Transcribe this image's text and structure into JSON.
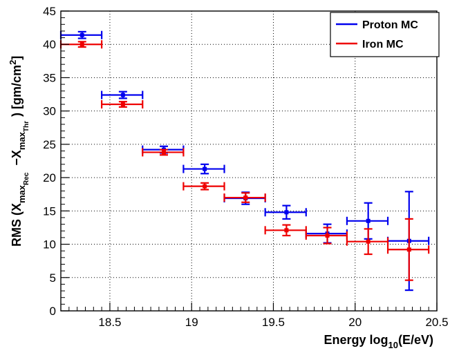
{
  "chart_data": {
    "type": "scatter",
    "title": "",
    "xlabel": "Energy  log10(E/eV)",
    "xlabel_parts": {
      "main": "Energy  log",
      "sub": "10",
      "tail": "(E/eV)"
    },
    "ylabel": "RMS (Xmax_Rec −Xmax_Thr)   [gm/cm2]",
    "ylabel_parts": {
      "p1": "RMS (X",
      "s1": "max",
      "ss1": "Rec",
      "p2": "−X",
      "s2": "max",
      "ss2": "Thr",
      "p3": ")   [gm/cm",
      "sup": "2",
      "p4": "]"
    },
    "xlim": [
      18.2,
      20.5
    ],
    "ylim": [
      0,
      45
    ],
    "grid": true,
    "legend_position": "top-right",
    "xticks": [
      18.5,
      19,
      19.5,
      20,
      20.5
    ],
    "xtick_labels": [
      "18.5",
      "19",
      "19.5",
      "20",
      "20.5"
    ],
    "yticks": [
      0,
      5,
      10,
      15,
      20,
      25,
      30,
      35,
      40,
      45
    ],
    "ytick_labels": [
      "0",
      "5",
      "10",
      "15",
      "20",
      "25",
      "30",
      "35",
      "40",
      "45"
    ],
    "series": [
      {
        "name": "Proton MC",
        "color": "#0000ee",
        "points": [
          {
            "x": 18.33,
            "xlo": 18.2,
            "xhi": 18.45,
            "y": 41.4,
            "ylo": 40.9,
            "yhi": 41.9
          },
          {
            "x": 18.58,
            "xlo": 18.45,
            "xhi": 18.7,
            "y": 32.4,
            "ylo": 31.9,
            "yhi": 32.9
          },
          {
            "x": 18.83,
            "xlo": 18.7,
            "xhi": 18.95,
            "y": 24.2,
            "ylo": 23.7,
            "yhi": 24.7
          },
          {
            "x": 19.08,
            "xlo": 18.95,
            "xhi": 19.2,
            "y": 21.3,
            "ylo": 20.6,
            "yhi": 22.0
          },
          {
            "x": 19.33,
            "xlo": 19.2,
            "xhi": 19.45,
            "y": 16.9,
            "ylo": 16.0,
            "yhi": 17.8
          },
          {
            "x": 19.58,
            "xlo": 19.45,
            "xhi": 19.7,
            "y": 14.8,
            "ylo": 13.8,
            "yhi": 15.8
          },
          {
            "x": 19.83,
            "xlo": 19.7,
            "xhi": 19.95,
            "y": 11.6,
            "ylo": 10.2,
            "yhi": 13.0
          },
          {
            "x": 20.08,
            "xlo": 19.95,
            "xhi": 20.2,
            "y": 13.5,
            "ylo": 10.8,
            "yhi": 16.2
          },
          {
            "x": 20.33,
            "xlo": 20.2,
            "xhi": 20.45,
            "y": 10.5,
            "ylo": 3.1,
            "yhi": 17.9
          }
        ]
      },
      {
        "name": "Iron MC",
        "color": "#ee0000",
        "points": [
          {
            "x": 18.33,
            "xlo": 18.2,
            "xhi": 18.45,
            "y": 40.0,
            "ylo": 39.6,
            "yhi": 40.4
          },
          {
            "x": 18.58,
            "xlo": 18.45,
            "xhi": 18.7,
            "y": 31.0,
            "ylo": 30.6,
            "yhi": 31.4
          },
          {
            "x": 18.83,
            "xlo": 18.7,
            "xhi": 18.95,
            "y": 23.8,
            "ylo": 23.4,
            "yhi": 24.2
          },
          {
            "x": 19.08,
            "xlo": 18.95,
            "xhi": 19.2,
            "y": 18.7,
            "ylo": 18.2,
            "yhi": 19.2
          },
          {
            "x": 19.33,
            "xlo": 19.2,
            "xhi": 19.45,
            "y": 17.0,
            "ylo": 16.3,
            "yhi": 17.7
          },
          {
            "x": 19.58,
            "xlo": 19.45,
            "xhi": 19.7,
            "y": 12.1,
            "ylo": 11.3,
            "yhi": 12.9
          },
          {
            "x": 19.83,
            "xlo": 19.7,
            "xhi": 19.95,
            "y": 11.3,
            "ylo": 10.1,
            "yhi": 12.5
          },
          {
            "x": 20.08,
            "xlo": 19.95,
            "xhi": 20.2,
            "y": 10.4,
            "ylo": 8.5,
            "yhi": 12.3
          },
          {
            "x": 20.33,
            "xlo": 20.2,
            "xhi": 20.45,
            "y": 9.2,
            "ylo": 4.6,
            "yhi": 13.8
          }
        ]
      }
    ]
  }
}
